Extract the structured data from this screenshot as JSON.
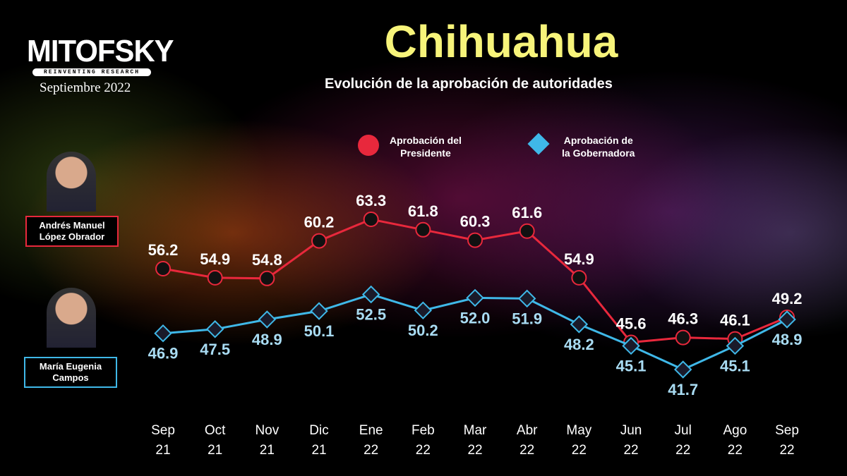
{
  "header": {
    "logo": "MITOFSKY",
    "tagline": "REINVENTING RESEARCH",
    "date": "Septiembre 2022",
    "title": "Chihuahua",
    "subtitle": "Evolución de la aprobación de autoridades"
  },
  "people": [
    {
      "name_line1": "Andrés Manuel",
      "name_line2": "López Obrador",
      "color": "#e8283c"
    },
    {
      "name_line1": "María Eugenia",
      "name_line2": "Campos",
      "color": "#3fb8e8"
    }
  ],
  "chart_data": {
    "type": "line",
    "title": "Evolución de la aprobación de autoridades",
    "categories": [
      [
        "Sep",
        "21"
      ],
      [
        "Oct",
        "21"
      ],
      [
        "Nov",
        "21"
      ],
      [
        "Dic",
        "21"
      ],
      [
        "Ene",
        "22"
      ],
      [
        "Feb",
        "22"
      ],
      [
        "Mar",
        "22"
      ],
      [
        "Abr",
        "22"
      ],
      [
        "May",
        "22"
      ],
      [
        "Jun",
        "22"
      ],
      [
        "Jul",
        "22"
      ],
      [
        "Ago",
        "22"
      ],
      [
        "Sep",
        "22"
      ]
    ],
    "series": [
      {
        "name_line1": "Aprobación del",
        "name_line2": "Presidente",
        "marker": "circle",
        "color": "#e8283c",
        "values": [
          56.2,
          54.9,
          54.8,
          60.2,
          63.3,
          61.8,
          60.3,
          61.6,
          54.9,
          45.6,
          46.3,
          46.1,
          49.2
        ]
      },
      {
        "name_line1": "Aprobación de",
        "name_line2": "la Gobernadora",
        "marker": "diamond",
        "color": "#3fb8e8",
        "values": [
          46.9,
          47.5,
          48.9,
          50.1,
          52.5,
          50.2,
          52.0,
          51.9,
          48.2,
          45.1,
          41.7,
          45.1,
          48.9
        ]
      }
    ],
    "grid": false,
    "legend": "top-center"
  }
}
